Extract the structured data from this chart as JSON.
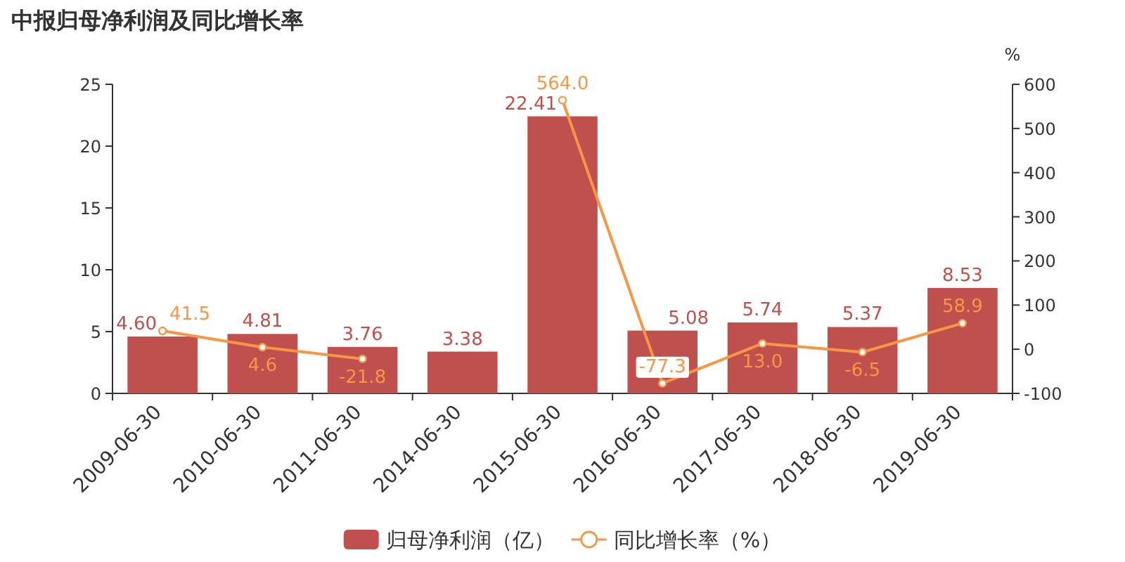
{
  "chart_data": {
    "type": "bar",
    "title": "中报归母净利润及同比增长率",
    "categories": [
      "2009-06-30",
      "2010-06-30",
      "2011-06-30",
      "2014-06-30",
      "2015-06-30",
      "2016-06-30",
      "2017-06-30",
      "2018-06-30",
      "2019-06-30"
    ],
    "y2label": "%",
    "ylim": [
      0,
      25
    ],
    "yticks": [
      0,
      5,
      10,
      15,
      20,
      25
    ],
    "y2lim": [
      -100,
      600
    ],
    "y2ticks": [
      -100,
      0,
      100,
      200,
      300,
      400,
      500,
      600
    ],
    "legend": "bottom",
    "series": [
      {
        "name": "归母净利润（亿）",
        "color": "#c0504d",
        "values": [
          4.6,
          4.81,
          3.76,
          3.38,
          22.41,
          5.08,
          5.74,
          5.37,
          8.53
        ],
        "value_labels": [
          "4.60",
          "4.81",
          "3.76",
          "3.38",
          "22.41",
          "5.08",
          "5.74",
          "5.37",
          "8.53"
        ]
      },
      {
        "name": "同比增长率（%）",
        "type": "line",
        "axis": "y2",
        "color": "#f79646",
        "marker": "circle",
        "values": [
          41.5,
          4.6,
          -21.8,
          null,
          564.0,
          -77.3,
          13.0,
          -6.5,
          58.9
        ],
        "value_labels": [
          "41.5",
          "4.6",
          "-21.8",
          null,
          "564.0",
          "-77.3",
          "13.0",
          "-6.5",
          "58.9"
        ]
      }
    ]
  }
}
